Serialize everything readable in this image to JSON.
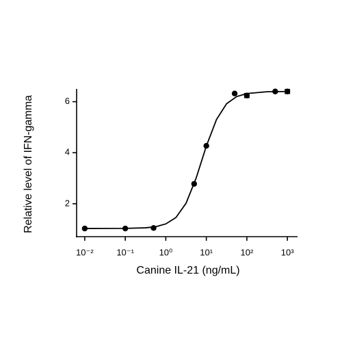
{
  "chart_data": {
    "type": "scatter",
    "x_label": "Canine IL-21 (ng/mL)",
    "y_label": "Relative level of IFN-gamma",
    "x_scale": "log",
    "x": [
      0.01,
      0.1,
      0.5,
      5,
      10,
      50,
      100,
      500,
      1000
    ],
    "values": [
      1.03,
      1.03,
      1.05,
      2.78,
      4.27,
      6.32,
      6.24,
      6.4,
      6.4
    ],
    "errors": [
      null,
      null,
      null,
      null,
      null,
      null,
      0.08,
      null,
      0.08
    ],
    "color": "#000000",
    "fit_curve": {
      "x": [
        0.01,
        0.1,
        0.316,
        0.562,
        1,
        1.78,
        3.16,
        5.62,
        10,
        17.8,
        31.6,
        56.2,
        100,
        316,
        1000
      ],
      "values": [
        1.03,
        1.034,
        1.057,
        1.1,
        1.21,
        1.46,
        2.02,
        3.01,
        4.26,
        5.3,
        5.92,
        6.2,
        6.32,
        6.39,
        6.4
      ]
    },
    "xlim": [
      0.0063,
      1780
    ],
    "ylim": [
      0.71,
      6.5
    ],
    "xticks": [
      {
        "value": 0.01,
        "label": "10⁻²"
      },
      {
        "value": 0.1,
        "label": "10⁻¹"
      },
      {
        "value": 1,
        "label": "10⁰"
      },
      {
        "value": 10,
        "label": "10¹"
      },
      {
        "value": 100,
        "label": "10²"
      },
      {
        "value": 1000,
        "label": "10³"
      }
    ],
    "yticks": [
      2,
      4,
      6
    ]
  }
}
